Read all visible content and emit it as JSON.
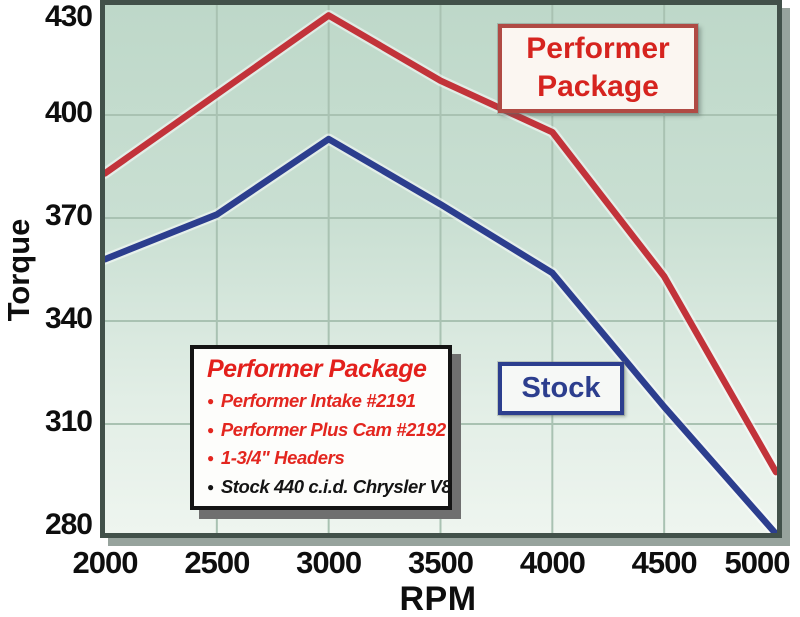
{
  "chart_data": {
    "type": "line",
    "title": "",
    "xlabel": "RPM",
    "ylabel": "Torque",
    "x": [
      2000,
      2500,
      3000,
      3500,
      4000,
      4500,
      5000
    ],
    "yticks": [
      280,
      310,
      340,
      370,
      400,
      430
    ],
    "xlim": [
      2000,
      5000
    ],
    "ylim": [
      280,
      430
    ],
    "grid": true,
    "legend_position": "inside-lower-left",
    "series": [
      {
        "name": "Performer Package",
        "color": "#c2333a",
        "values": [
          383,
          406,
          429,
          410,
          395,
          353,
          296
        ]
      },
      {
        "name": "Stock",
        "color": "#2c3e8e",
        "values": [
          358,
          371,
          393,
          374,
          354,
          315,
          278
        ]
      }
    ]
  },
  "labels": {
    "y_axis_title": "Torque",
    "x_axis_title": "RPM",
    "performer_box_line1": "Performer",
    "performer_box_line2": "Package",
    "stock_box": "Stock"
  },
  "legend": {
    "title": "Performer Package",
    "items": [
      {
        "text": "Performer Intake #2191",
        "color": "red"
      },
      {
        "text": "Performer Plus Cam #2192",
        "color": "red"
      },
      {
        "text": "1-3/4\" Headers",
        "color": "red"
      },
      {
        "text": "Stock 440 c.i.d. Chrysler V8",
        "color": "black"
      }
    ]
  },
  "colors": {
    "plot_border": "#42514a",
    "plot_bg_top": "#bed8c9",
    "plot_bg_bottom": "#eef5ef",
    "gridline": "#a9c2b2",
    "performer_line": "#c2333a",
    "stock_line": "#2c3e8e",
    "legend_red": "#e3261f",
    "text_black": "#0e0e0e"
  }
}
